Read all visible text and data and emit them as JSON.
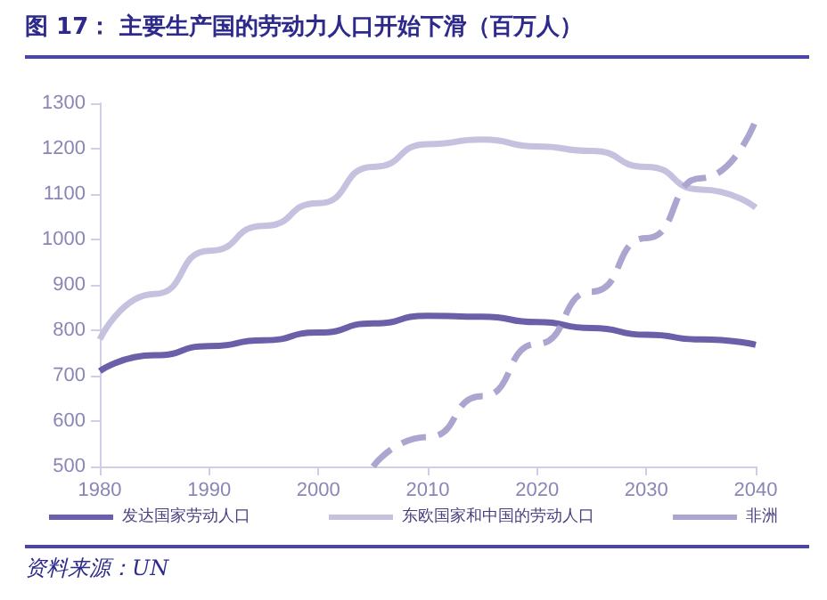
{
  "chart_data": {
    "type": "line",
    "title": "图 17：  主要生产国的劳动力人口开始下滑（百万人）",
    "annotations": [
      "资料来源：UN"
    ],
    "x": [
      1980,
      1985,
      1990,
      1995,
      2000,
      2005,
      2010,
      2015,
      2020,
      2025,
      2030,
      2035,
      2040
    ],
    "series": [
      {
        "name": "发达国家劳动人口",
        "color": "#6a5fa8",
        "values": [
          710,
          745,
          765,
          778,
          795,
          815,
          832,
          830,
          818,
          805,
          790,
          780,
          768
        ]
      },
      {
        "name": "东欧国家和中国的劳动人口",
        "color": "#c5c2df",
        "values": [
          780,
          880,
          975,
          1030,
          1080,
          1160,
          1210,
          1220,
          1205,
          1195,
          1160,
          1110,
          1070
        ]
      },
      {
        "name": "非洲",
        "color": "#aaa6cf",
        "line_style": "dashed",
        "values": [
          null,
          null,
          null,
          null,
          null,
          500,
          565,
          655,
          770,
          885,
          1003,
          1135,
          1262
        ]
      }
    ],
    "xlim": [
      1980,
      2040
    ],
    "xticks": [
      1980,
      1990,
      2000,
      2010,
      2020,
      2030,
      2040
    ],
    "ylim": [
      500,
      1300
    ],
    "yticks": [
      500,
      600,
      700,
      800,
      900,
      1000,
      1100,
      1200,
      1300
    ],
    "grid": false,
    "legend": "bottom",
    "marker": "none",
    "line_style": "solid"
  }
}
